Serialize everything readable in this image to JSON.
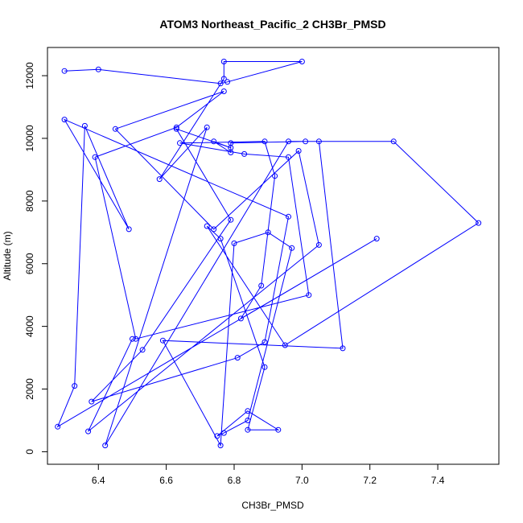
{
  "chart_data": {
    "type": "line",
    "title": "ATOM3 Northeast_Pacific_2 CH3Br_PMSD",
    "xlabel": "CH3Br_PMSD",
    "ylabel": "Altitude (m)",
    "xlim": [
      6.25,
      7.58
    ],
    "ylim": [
      -400,
      12900
    ],
    "xticks": [
      6.4,
      6.6,
      6.8,
      7.0,
      7.2,
      7.4
    ],
    "xtick_labels": [
      "6.4",
      "6.6",
      "6.8",
      "7.0",
      "7.2",
      "7.4"
    ],
    "yticks": [
      0,
      2000,
      4000,
      6000,
      8000,
      10000,
      12000
    ],
    "ytick_labels": [
      "0",
      "2000",
      "4000",
      "6000",
      "8000",
      "10000",
      "12000"
    ],
    "grid": false,
    "color": "#0000ff",
    "series": [
      {
        "x": [
          6.3,
          6.4,
          6.76,
          6.78,
          7.0,
          6.77,
          6.77,
          6.58,
          6.72,
          6.42,
          6.96,
          7.05,
          7.12,
          6.59,
          6.76,
          6.8,
          6.9,
          6.97,
          6.84,
          6.77,
          6.75,
          6.84,
          6.93,
          6.84,
          6.89,
          6.76,
          6.72,
          6.95,
          7.52,
          7.27,
          7.01,
          6.79,
          6.79,
          6.74,
          6.79,
          6.63,
          6.79,
          6.53,
          6.38,
          6.81,
          6.89,
          6.96,
          6.3,
          6.49,
          6.36,
          6.33,
          6.28,
          7.22,
          6.82,
          6.88,
          6.92,
          6.89,
          6.64,
          6.83,
          6.96,
          7.02,
          6.51,
          6.39,
          6.63,
          6.77,
          6.45,
          6.74,
          6.99,
          7.05,
          6.37,
          6.5
        ]
      }
    ],
    "y": [
      12150,
      12200,
      11750,
      11800,
      12450,
      12450,
      11900,
      8700,
      10350,
      200,
      9900,
      9900,
      3300,
      3550,
      200,
      6650,
      7000,
      6500,
      1000,
      600,
      500,
      1300,
      700,
      700,
      2700,
      6800,
      7200,
      3400,
      7300,
      9900,
      9900,
      9850,
      9550,
      9900,
      9700,
      10300,
      7400,
      3250,
      1600,
      3000,
      3500,
      7500,
      10600,
      7100,
      10400,
      2100,
      800,
      6800,
      4250,
      5300,
      8800,
      9900,
      9850,
      9500,
      9400,
      5000,
      3600,
      9400,
      10350,
      11500,
      10300,
      7100,
      9600,
      6600,
      650,
      3600
    ]
  }
}
